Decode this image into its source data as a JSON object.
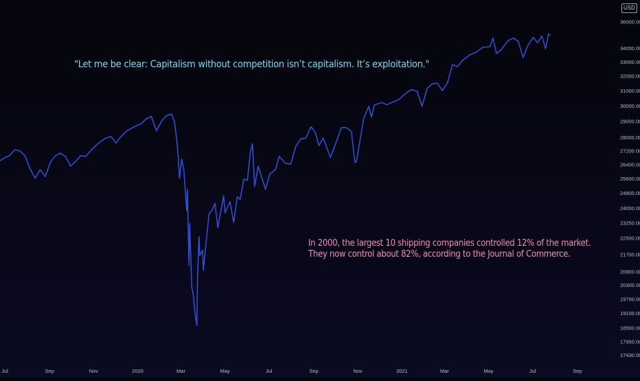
{
  "annotations": {
    "quote": "\"Let me be clear: Capitalism without competition isn’t capitalism. It’s exploitation.\"",
    "note_line1": "In 2000, the largest 10 shipping companies controlled 12% of the market.",
    "note_line2": "They now control about 82%, according to the Journal of Commerce."
  },
  "currency_badge": "USD",
  "colors": {
    "background": "#0a0a18",
    "line": "#2f4fd0",
    "quote_text": "#7fd7ee",
    "note_text": "#f08fb0",
    "axis_text": "#b8bccb"
  },
  "chart_data": {
    "type": "line",
    "title": "",
    "xlabel": "",
    "ylabel": "",
    "grid": false,
    "legend": "none",
    "y_scale": "log",
    "ylim": [
      17100,
      37300
    ],
    "y_axis_side": "right",
    "x_range": [
      "2019-07-01",
      "2021-09-25"
    ],
    "x_ticks": [
      {
        "label": "Jul",
        "date": "2019-07-01"
      },
      {
        "label": "Sep",
        "date": "2019-09-01"
      },
      {
        "label": "Nov",
        "date": "2019-11-01"
      },
      {
        "label": "2020",
        "date": "2020-01-01"
      },
      {
        "label": "Mar",
        "date": "2020-03-01"
      },
      {
        "label": "May",
        "date": "2020-05-01"
      },
      {
        "label": "Jul",
        "date": "2020-07-01"
      },
      {
        "label": "Sep",
        "date": "2020-09-01"
      },
      {
        "label": "Nov",
        "date": "2020-11-01"
      },
      {
        "label": "2021",
        "date": "2021-01-01"
      },
      {
        "label": "Mar",
        "date": "2021-03-01"
      },
      {
        "label": "May",
        "date": "2021-05-01"
      },
      {
        "label": "Jul",
        "date": "2021-07-01"
      },
      {
        "label": "Sep",
        "date": "2021-09-01"
      }
    ],
    "y_ticks": [
      {
        "label": "36000.00",
        "value": 36000
      },
      {
        "label": "34000.00",
        "value": 34000
      },
      {
        "label": "33000.00",
        "value": 33000
      },
      {
        "label": "32000.00",
        "value": 32000
      },
      {
        "label": "31000.00",
        "value": 31000
      },
      {
        "label": "30000.00",
        "value": 30000
      },
      {
        "label": "29000.00",
        "value": 29000
      },
      {
        "label": "28000.00",
        "value": 28000
      },
      {
        "label": "27200.00",
        "value": 27200
      },
      {
        "label": "26400.00",
        "value": 26400
      },
      {
        "label": "25600.00",
        "value": 25600
      },
      {
        "label": "24800.00",
        "value": 24800
      },
      {
        "label": "24000.00",
        "value": 24000
      },
      {
        "label": "23250.00",
        "value": 23250
      },
      {
        "label": "22500.00",
        "value": 22500
      },
      {
        "label": "21700.00",
        "value": 21700
      },
      {
        "label": "20900.00",
        "value": 20900
      },
      {
        "label": "20300.00",
        "value": 20300
      },
      {
        "label": "19700.00",
        "value": 19700
      },
      {
        "label": "19100.00",
        "value": 19100
      },
      {
        "label": "18500.00",
        "value": 18500
      },
      {
        "label": "17950.00",
        "value": 17950
      },
      {
        "label": "17430.00",
        "value": 17430
      }
    ],
    "series": [
      {
        "points": [
          [
            "2019-06-20",
            26500
          ],
          [
            "2019-07-01",
            26780
          ],
          [
            "2019-07-08",
            26920
          ],
          [
            "2019-07-15",
            27250
          ],
          [
            "2019-07-22",
            27180
          ],
          [
            "2019-07-29",
            26900
          ],
          [
            "2019-08-05",
            26150
          ],
          [
            "2019-08-12",
            25600
          ],
          [
            "2019-08-19",
            26100
          ],
          [
            "2019-08-26",
            25700
          ],
          [
            "2019-09-02",
            26500
          ],
          [
            "2019-09-09",
            26900
          ],
          [
            "2019-09-16",
            27050
          ],
          [
            "2019-09-23",
            26850
          ],
          [
            "2019-09-30",
            26300
          ],
          [
            "2019-10-07",
            26550
          ],
          [
            "2019-10-14",
            26900
          ],
          [
            "2019-10-21",
            26850
          ],
          [
            "2019-10-28",
            27200
          ],
          [
            "2019-11-04",
            27500
          ],
          [
            "2019-11-11",
            27750
          ],
          [
            "2019-11-18",
            27950
          ],
          [
            "2019-11-25",
            28050
          ],
          [
            "2019-12-02",
            27650
          ],
          [
            "2019-12-09",
            28050
          ],
          [
            "2019-12-16",
            28350
          ],
          [
            "2019-12-23",
            28550
          ],
          [
            "2019-12-30",
            28700
          ],
          [
            "2020-01-06",
            28850
          ],
          [
            "2020-01-13",
            29150
          ],
          [
            "2020-01-20",
            29300
          ],
          [
            "2020-01-27",
            28400
          ],
          [
            "2020-02-03",
            29000
          ],
          [
            "2020-02-10",
            29350
          ],
          [
            "2020-02-17",
            29450
          ],
          [
            "2020-02-21",
            28950
          ],
          [
            "2020-02-24",
            27900
          ],
          [
            "2020-02-26",
            27000
          ],
          [
            "2020-02-28",
            25600
          ],
          [
            "2020-03-02",
            26700
          ],
          [
            "2020-03-05",
            26100
          ],
          [
            "2020-03-09",
            23850
          ],
          [
            "2020-03-10",
            25000
          ],
          [
            "2020-03-12",
            21200
          ],
          [
            "2020-03-13",
            23200
          ],
          [
            "2020-03-16",
            20200
          ],
          [
            "2020-03-18",
            19900
          ],
          [
            "2020-03-20",
            19200
          ],
          [
            "2020-03-23",
            18590
          ],
          [
            "2020-03-24",
            20700
          ],
          [
            "2020-03-26",
            22550
          ],
          [
            "2020-03-27",
            21650
          ],
          [
            "2020-03-31",
            21900
          ],
          [
            "2020-04-01",
            20950
          ],
          [
            "2020-04-06",
            22700
          ],
          [
            "2020-04-09",
            23700
          ],
          [
            "2020-04-14",
            23950
          ],
          [
            "2020-04-17",
            24250
          ],
          [
            "2020-04-21",
            23000
          ],
          [
            "2020-04-29",
            24650
          ],
          [
            "2020-05-01",
            23750
          ],
          [
            "2020-05-08",
            24350
          ],
          [
            "2020-05-13",
            23250
          ],
          [
            "2020-05-18",
            24600
          ],
          [
            "2020-05-22",
            24450
          ],
          [
            "2020-05-27",
            25550
          ],
          [
            "2020-06-01",
            25500
          ],
          [
            "2020-06-05",
            27100
          ],
          [
            "2020-06-08",
            27600
          ],
          [
            "2020-06-11",
            25150
          ],
          [
            "2020-06-16",
            26300
          ],
          [
            "2020-06-19",
            25900
          ],
          [
            "2020-06-26",
            25000
          ],
          [
            "2020-07-02",
            25850
          ],
          [
            "2020-07-10",
            26100
          ],
          [
            "2020-07-15",
            26850
          ],
          [
            "2020-07-24",
            26450
          ],
          [
            "2020-07-31",
            26400
          ],
          [
            "2020-08-07",
            27450
          ],
          [
            "2020-08-14",
            27900
          ],
          [
            "2020-08-21",
            27950
          ],
          [
            "2020-08-28",
            28650
          ],
          [
            "2020-09-03",
            28300
          ],
          [
            "2020-09-08",
            27500
          ],
          [
            "2020-09-14",
            27950
          ],
          [
            "2020-09-21",
            27150
          ],
          [
            "2020-09-24",
            26800
          ],
          [
            "2020-10-02",
            27700
          ],
          [
            "2020-10-09",
            28600
          ],
          [
            "2020-10-16",
            28600
          ],
          [
            "2020-10-23",
            28350
          ],
          [
            "2020-10-28",
            26500
          ],
          [
            "2020-10-30",
            26550
          ],
          [
            "2020-11-04",
            27800
          ],
          [
            "2020-11-09",
            29150
          ],
          [
            "2020-11-16",
            29950
          ],
          [
            "2020-11-20",
            29250
          ],
          [
            "2020-11-24",
            30050
          ],
          [
            "2020-12-04",
            30200
          ],
          [
            "2020-12-11",
            30050
          ],
          [
            "2020-12-18",
            30200
          ],
          [
            "2020-12-28",
            30400
          ],
          [
            "2021-01-06",
            30800
          ],
          [
            "2021-01-14",
            31050
          ],
          [
            "2021-01-22",
            30950
          ],
          [
            "2021-01-29",
            29950
          ],
          [
            "2021-02-05",
            31150
          ],
          [
            "2021-02-12",
            31450
          ],
          [
            "2021-02-19",
            31500
          ],
          [
            "2021-02-26",
            31000
          ],
          [
            "2021-03-05",
            31500
          ],
          [
            "2021-03-12",
            32800
          ],
          [
            "2021-03-19",
            32650
          ],
          [
            "2021-03-26",
            33100
          ],
          [
            "2021-04-05",
            33500
          ],
          [
            "2021-04-14",
            33700
          ],
          [
            "2021-04-23",
            34050
          ],
          [
            "2021-05-03",
            34100
          ],
          [
            "2021-05-07",
            34750
          ],
          [
            "2021-05-12",
            33600
          ],
          [
            "2021-05-19",
            33900
          ],
          [
            "2021-05-28",
            34550
          ],
          [
            "2021-06-04",
            34750
          ],
          [
            "2021-06-11",
            34500
          ],
          [
            "2021-06-18",
            33300
          ],
          [
            "2021-06-24",
            34150
          ],
          [
            "2021-07-02",
            34800
          ],
          [
            "2021-07-08",
            34400
          ],
          [
            "2021-07-14",
            34900
          ],
          [
            "2021-07-19",
            33950
          ],
          [
            "2021-07-23",
            35050
          ],
          [
            "2021-07-26",
            34950
          ]
        ]
      }
    ]
  }
}
